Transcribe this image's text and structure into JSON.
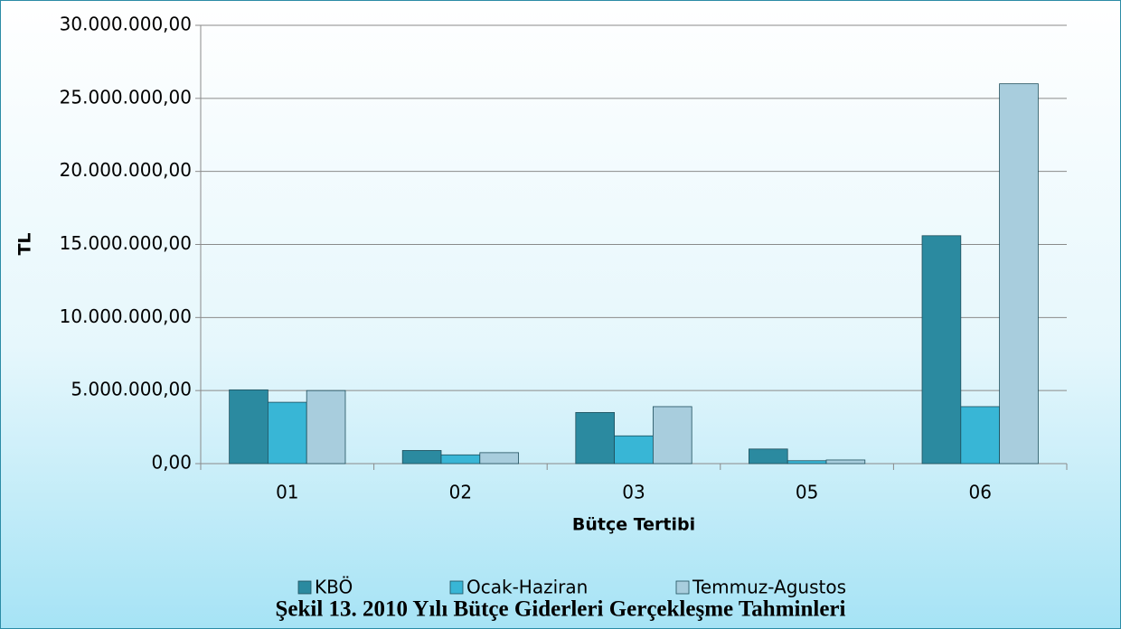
{
  "chart_data": {
    "type": "bar",
    "caption": "Şekil 13. 2010 Yılı Bütçe Giderleri Gerçekleşme Tahminleri",
    "x_label": "Bütçe Tertibi",
    "y_label": "TL",
    "categories": [
      "01",
      "02",
      "03",
      "05",
      "06"
    ],
    "series": [
      {
        "name": "KBÖ",
        "color": "#2b8aa0",
        "values": [
          5050000,
          900000,
          3500000,
          1000000,
          15600000
        ]
      },
      {
        "name": "Ocak-Haziran",
        "color": "#38b6d6",
        "values": [
          4200000,
          600000,
          1900000,
          200000,
          3900000
        ]
      },
      {
        "name": "Temmuz-Agustos",
        "color": "#a8cddd",
        "values": [
          5000000,
          750000,
          3900000,
          250000,
          26000000
        ]
      }
    ],
    "ylim": [
      0,
      30000000
    ],
    "yticks": [
      {
        "value": 0,
        "label": "0,00"
      },
      {
        "value": 5000000,
        "label": "5.000.000,00"
      },
      {
        "value": 10000000,
        "label": "10.000.000,00"
      },
      {
        "value": 15000000,
        "label": "15.000.000,00"
      },
      {
        "value": 20000000,
        "label": "20.000.000,00"
      },
      {
        "value": 25000000,
        "label": "25.000.000,00"
      },
      {
        "value": 30000000,
        "label": "30.000.000,00"
      }
    ],
    "grid": true,
    "legend": "bottom"
  }
}
